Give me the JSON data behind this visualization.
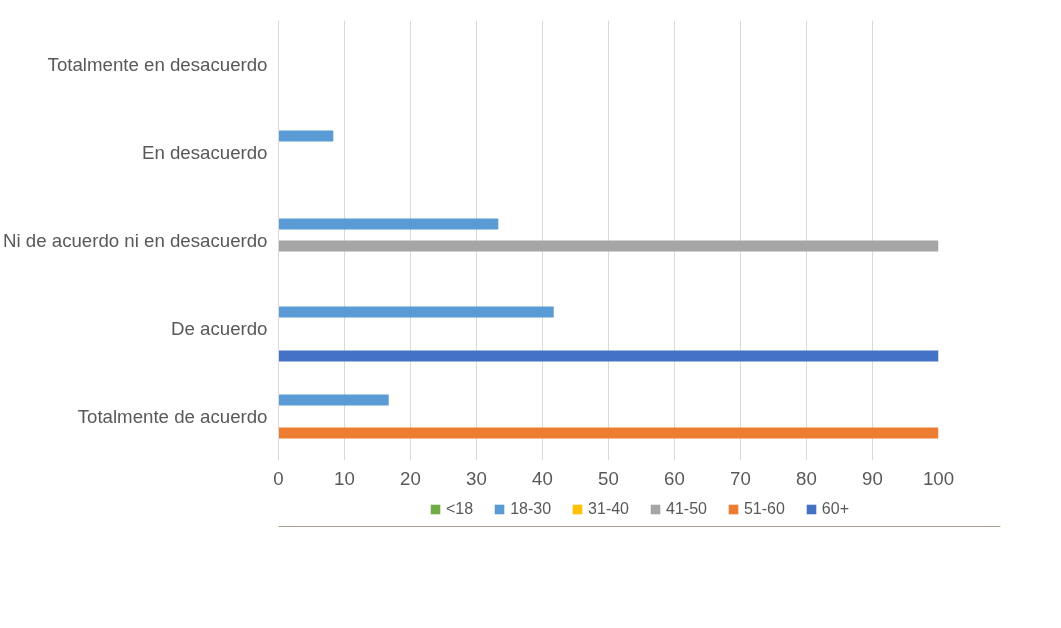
{
  "chart_data": {
    "type": "bar",
    "orientation": "horizontal",
    "categories": [
      "Totalmente en desacuerdo",
      "En desacuerdo",
      "Ni de acuerdo ni en desacuerdo",
      "De acuerdo",
      "Totalmente de acuerdo"
    ],
    "series": [
      {
        "name": "<18",
        "color": "#70ad47",
        "values": [
          0,
          0,
          0,
          0,
          0
        ]
      },
      {
        "name": "18-30",
        "color": "#5b9bd5",
        "values": [
          0,
          8.3,
          33.3,
          41.7,
          16.7
        ]
      },
      {
        "name": "31-40",
        "color": "#ffc000",
        "values": [
          0,
          0,
          0,
          0,
          0
        ]
      },
      {
        "name": "41-50",
        "color": "#a5a5a5",
        "values": [
          0,
          0,
          100,
          0,
          0
        ]
      },
      {
        "name": "51-60",
        "color": "#ed7d31",
        "values": [
          0,
          0,
          0,
          0,
          100
        ]
      },
      {
        "name": "60+",
        "color": "#4472c4",
        "values": [
          0,
          0,
          0,
          100,
          0
        ]
      }
    ],
    "xlim": [
      0,
      100
    ],
    "xticks": [
      0,
      10,
      20,
      30,
      40,
      50,
      60,
      70,
      80,
      90,
      100
    ],
    "grid": "x",
    "legend": "bottom"
  }
}
